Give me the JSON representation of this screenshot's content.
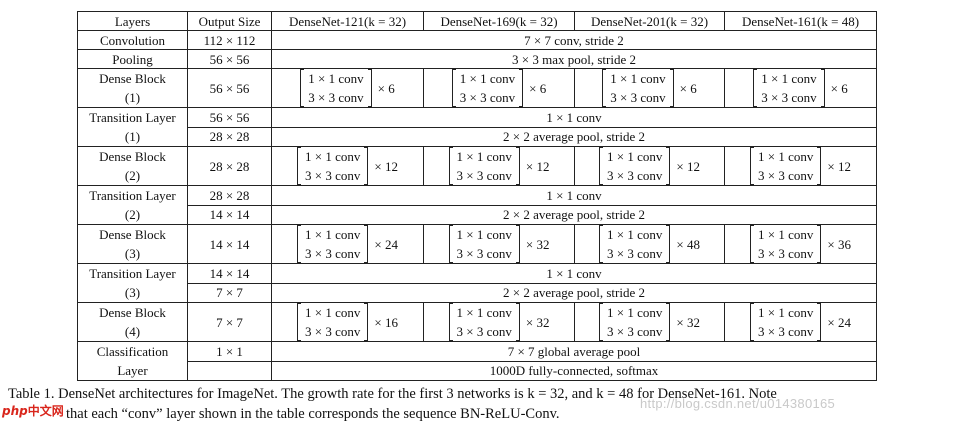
{
  "table": {
    "headers": [
      "Layers",
      "Output Size",
      "DenseNet-121(k = 32)",
      "DenseNet-169(k = 32)",
      "DenseNet-201(k = 32)",
      "DenseNet-161(k = 48)"
    ],
    "rows": [
      {
        "type": "span",
        "layer": [
          "Convolution"
        ],
        "output": "112 × 112",
        "text": "7 × 7 conv, stride 2"
      },
      {
        "type": "span",
        "layer": [
          "Pooling"
        ],
        "output": "56 × 56",
        "text": "3 × 3 max pool, stride 2"
      },
      {
        "type": "block",
        "layer": [
          "Dense Block",
          "(1)"
        ],
        "output": "56 × 56",
        "line1": "1 × 1 conv",
        "line2": "3 × 3 conv",
        "mult": [
          "× 6",
          "× 6",
          "× 6",
          "× 6"
        ]
      },
      {
        "type": "trans",
        "layer": [
          "Transition Layer",
          "(1)"
        ],
        "output": [
          "56 × 56",
          "28 × 28"
        ],
        "text": [
          "1 × 1 conv",
          "2 × 2 average pool, stride 2"
        ]
      },
      {
        "type": "block",
        "layer": [
          "Dense Block",
          "(2)"
        ],
        "output": "28 × 28",
        "line1": "1 × 1 conv",
        "line2": "3 × 3 conv",
        "mult": [
          "× 12",
          "× 12",
          "× 12",
          "× 12"
        ]
      },
      {
        "type": "trans",
        "layer": [
          "Transition Layer",
          "(2)"
        ],
        "output": [
          "28 × 28",
          "14 × 14"
        ],
        "text": [
          "1 × 1 conv",
          "2 × 2 average pool, stride 2"
        ]
      },
      {
        "type": "block",
        "layer": [
          "Dense Block",
          "(3)"
        ],
        "output": "14 × 14",
        "line1": "1 × 1 conv",
        "line2": "3 × 3 conv",
        "mult": [
          "× 24",
          "× 32",
          "× 48",
          "× 36"
        ]
      },
      {
        "type": "trans",
        "layer": [
          "Transition Layer",
          "(3)"
        ],
        "output": [
          "14 × 14",
          "7 × 7"
        ],
        "text": [
          "1 × 1 conv",
          "2 × 2 average pool, stride 2"
        ]
      },
      {
        "type": "block",
        "layer": [
          "Dense Block",
          "(4)"
        ],
        "output": "7 × 7",
        "line1": "1 × 1 conv",
        "line2": "3 × 3 conv",
        "mult": [
          "× 16",
          "× 32",
          "× 32",
          "× 24"
        ]
      },
      {
        "type": "trans",
        "layer": [
          "Classification",
          "Layer"
        ],
        "output": [
          "1 × 1",
          ""
        ],
        "text": [
          "7 × 7 global average pool",
          "1000D fully-connected, softmax"
        ]
      }
    ]
  },
  "caption": {
    "line1": "Table 1. DenseNet architectures for ImageNet. The growth rate for the first 3 networks is k = 32, and k = 48 for DenseNet-161. Note",
    "line2": "that each “conv” layer shown in the table corresponds the sequence BN-ReLU-Conv."
  },
  "watermark": "http://blog.csdn.net/u014380165",
  "logo": {
    "left": "php",
    "right": "中文网"
  }
}
